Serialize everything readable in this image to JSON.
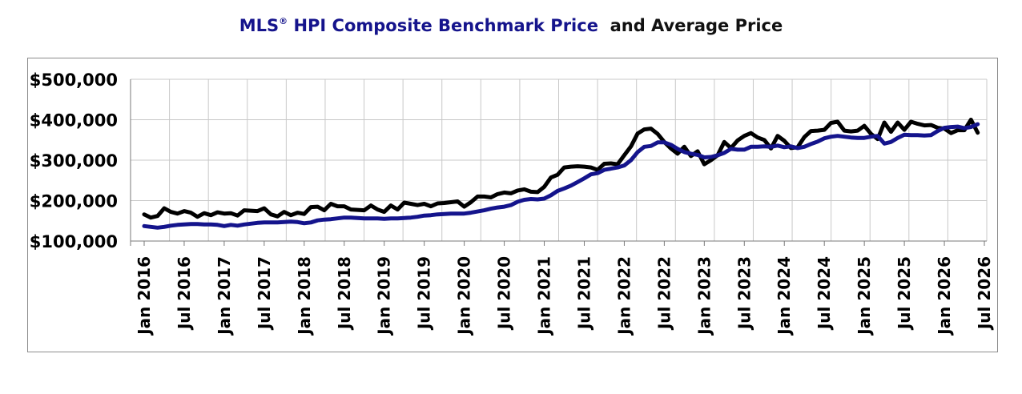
{
  "title": {
    "part1": "MLS",
    "reg": "®",
    "part2": " HPI Composite Benchmark Price",
    "part3": "and Average Price"
  },
  "chart_data": {
    "type": "line",
    "ylim": [
      100000,
      500000
    ],
    "yticks": [
      "$100,000",
      "$200,000",
      "$300,000",
      "$400,000",
      "$500,000"
    ],
    "ytick_values": [
      100000,
      200000,
      300000,
      400000,
      500000
    ],
    "xticks": [
      "Jan 2016",
      "Jul 2016",
      "Jan 2017",
      "Jul 2017",
      "Jan 2018",
      "Jul 2018",
      "Jan 2019",
      "Jul 2019",
      "Jan 2020",
      "Jul 2020",
      "Jan 2021",
      "Jul 2021",
      "Jan 2022",
      "Jul 2022",
      "Jan 2023",
      "Jul 2023",
      "Jan 2024",
      "Jul 2024",
      "Jan 2025",
      "Jul 2025",
      "Jan 2026",
      "Jul 2026"
    ],
    "grid": true,
    "x_start": "2016-01",
    "series": [
      {
        "color": "#000000",
        "values": [
          166000,
          158000,
          162000,
          181000,
          172000,
          168000,
          174000,
          170000,
          160000,
          169000,
          164000,
          171000,
          168000,
          169000,
          163000,
          176000,
          175000,
          174000,
          181000,
          166000,
          161000,
          172000,
          164000,
          170000,
          167000,
          184000,
          185000,
          176000,
          192000,
          186000,
          186000,
          178000,
          177000,
          176000,
          188000,
          178000,
          172000,
          188000,
          178000,
          195000,
          192000,
          189000,
          192000,
          186000,
          193000,
          194000,
          196000,
          198000,
          185000,
          196000,
          210000,
          210000,
          208000,
          216000,
          220000,
          218000,
          225000,
          228000,
          222000,
          221000,
          234000,
          257000,
          264000,
          282000,
          284000,
          285000,
          284000,
          282000,
          276000,
          291000,
          292000,
          290000,
          312000,
          334000,
          366000,
          376000,
          378000,
          365000,
          345000,
          329000,
          316000,
          333000,
          310000,
          322000,
          290000,
          300000,
          312000,
          345000,
          330000,
          349000,
          360000,
          367000,
          356000,
          350000,
          329000,
          360000,
          348000,
          330000,
          332000,
          357000,
          372000,
          373000,
          375000,
          392000,
          395000,
          373000,
          371000,
          373000,
          385000,
          365000,
          352000,
          393000,
          370000,
          393000,
          375000,
          395000,
          390000,
          386000,
          387000,
          380000,
          378000,
          367000,
          374000,
          374000,
          400000,
          368000
        ],
        "name": ""
      },
      {
        "color": "#14148c",
        "values": [
          137000,
          135000,
          133000,
          135000,
          138000,
          140000,
          141000,
          142000,
          142000,
          141000,
          141000,
          140000,
          137000,
          140000,
          138000,
          141000,
          143000,
          145000,
          146000,
          146000,
          146000,
          147000,
          148000,
          147000,
          144000,
          146000,
          151000,
          153000,
          154000,
          156000,
          158000,
          158000,
          157000,
          156000,
          156000,
          156000,
          155000,
          156000,
          156000,
          157000,
          158000,
          160000,
          163000,
          164000,
          166000,
          167000,
          168000,
          168000,
          168000,
          170000,
          173000,
          176000,
          180000,
          183000,
          185000,
          189000,
          197000,
          202000,
          204000,
          203000,
          205000,
          213000,
          224000,
          230000,
          237000,
          246000,
          255000,
          265000,
          268000,
          276000,
          279000,
          282000,
          287000,
          300000,
          320000,
          333000,
          335000,
          344000,
          344000,
          338000,
          328000,
          320000,
          316000,
          313000,
          307000,
          308000,
          312000,
          318000,
          328000,
          326000,
          326000,
          333000,
          333000,
          334000,
          333000,
          336000,
          332000,
          334000,
          330000,
          333000,
          340000,
          346000,
          354000,
          358000,
          360000,
          358000,
          356000,
          355000,
          355000,
          358000,
          360000,
          341000,
          345000,
          355000,
          363000,
          362000,
          362000,
          361000,
          362000,
          372000,
          380000,
          382000,
          383000,
          379000,
          382000,
          389000
        ],
        "name": ""
      }
    ]
  }
}
